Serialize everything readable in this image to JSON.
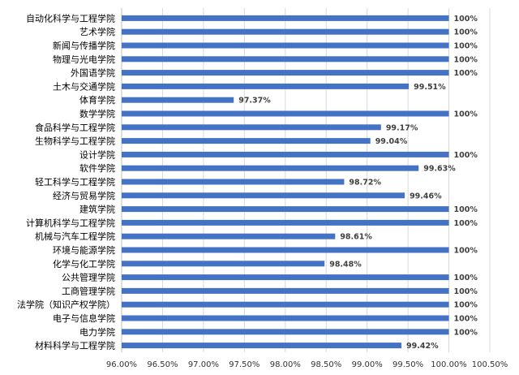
{
  "chart_data": {
    "type": "bar",
    "orientation": "horizontal",
    "categories": [
      "自动化科学与工程学院",
      "艺术学院",
      "新闻与传播学院",
      "物理与光电学院",
      "外国语学院",
      "土木与交通学院",
      "体育学院",
      "数学学院",
      "食品科学与工程学院",
      "生物科学与工程学院",
      "设计学院",
      "软件学院",
      "轻工科学与工程学院",
      "经济与贸易学院",
      "建筑学院",
      "计算机科学与工程学院",
      "机械与汽车工程学院",
      "环境与能源学院",
      "化学与化工学院",
      "公共管理学院",
      "工商管理学院",
      "法学院（知识产权学院）",
      "电子与信息学院",
      "电力学院",
      "材料科学与工程学院"
    ],
    "values": [
      100,
      100,
      100,
      100,
      100,
      99.51,
      97.37,
      100,
      99.17,
      99.04,
      100,
      99.63,
      98.72,
      99.46,
      100,
      100,
      98.61,
      100,
      98.48,
      100,
      100,
      100,
      100,
      100,
      99.42
    ],
    "data_labels": [
      "100%",
      "100%",
      "100%",
      "100%",
      "100%",
      "99.51%",
      "97.37%",
      "100%",
      "99.17%",
      "99.04%",
      "100%",
      "99.63%",
      "98.72%",
      "99.46%",
      "100%",
      "100%",
      "98.61%",
      "100%",
      "98.48%",
      "100%",
      "100%",
      "100%",
      "100%",
      "100%",
      "99.42%"
    ],
    "xlim": [
      96,
      100.5
    ],
    "x_ticks": [
      96,
      96.5,
      97,
      97.5,
      98,
      98.5,
      99,
      99.5,
      100,
      100.5
    ],
    "x_tick_labels": [
      "96.00%",
      "96.50%",
      "97.00%",
      "97.50%",
      "98.00%",
      "98.50%",
      "99.00%",
      "99.50%",
      "100.00%",
      "100.50%"
    ],
    "grid": true,
    "legend": "none",
    "bar_color": "#4472c4"
  }
}
